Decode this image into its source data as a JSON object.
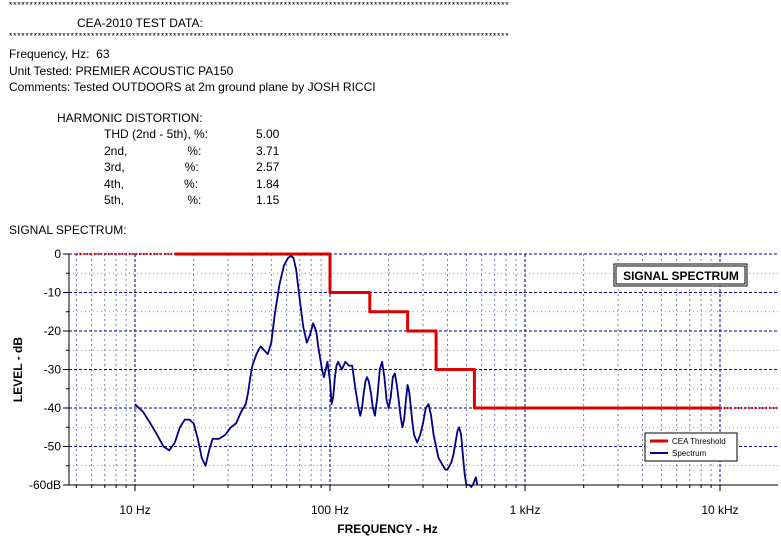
{
  "header": {
    "rule": "**************************************************************************************************************************",
    "title": "CEA-2010 TEST DATA:"
  },
  "info": {
    "frequency": "Frequency, Hz:  63",
    "unit": "Unit Tested: PREMIER ACOUSTIC PA150",
    "comments": "Comments: Tested OUTDOORS at 2m ground plane by JOSH RICCI"
  },
  "distortion": {
    "heading": "HARMONIC DISTORTION:",
    "rows": [
      {
        "label": "THD (2nd - 5th), %:",
        "value": "5.00"
      },
      {
        "label": "2nd,                  %:",
        "value": "3.71"
      },
      {
        "label": "3rd,                  %:",
        "value": "2.57"
      },
      {
        "label": "4th,                  %:",
        "value": "1.84"
      },
      {
        "label": "5th,                   %:",
        "value": "1.15"
      }
    ]
  },
  "spectrum_heading": "SIGNAL SPECTRUM:",
  "chart_data": {
    "type": "line",
    "title": "SIGNAL SPECTRUM",
    "xlabel": "FREQUENCY - Hz",
    "ylabel": "LEVEL - dB",
    "x_scale": "log",
    "xlim": [
      5,
      20000
    ],
    "ylim": [
      -60,
      0
    ],
    "grid": true,
    "legend": "bottom-right",
    "x_tick_labels": [
      {
        "value": 10,
        "label": "10  Hz"
      },
      {
        "value": 100,
        "label": "100  Hz"
      },
      {
        "value": 1000,
        "label": "1 kHz"
      },
      {
        "value": 10000,
        "label": "10 kHz"
      }
    ],
    "y_tick_labels": [
      {
        "value": 0,
        "label": "0"
      },
      {
        "value": -10,
        "label": "-10"
      },
      {
        "value": -20,
        "label": "-20"
      },
      {
        "value": -30,
        "label": "-30"
      },
      {
        "value": -40,
        "label": "-40"
      },
      {
        "value": -50,
        "label": "-50"
      },
      {
        "value": -60,
        "label": "-60dB"
      }
    ],
    "series": [
      {
        "name": "CEA Threshold",
        "color": "#dd0000",
        "dotted_segments": [
          {
            "x": [
              5,
              16
            ],
            "y": [
              0,
              0
            ]
          },
          {
            "x": [
              10000,
              20000
            ],
            "y": [
              -40,
              -40
            ]
          }
        ],
        "x": [
          16,
          100,
          100,
          160,
          160,
          250,
          250,
          350,
          350,
          550,
          550,
          10000
        ],
        "y": [
          0,
          0,
          -10,
          -10,
          -15,
          -15,
          -20,
          -20,
          -30,
          -30,
          -40,
          -40
        ]
      },
      {
        "name": "Spectrum",
        "color": "#000080",
        "x": [
          10,
          11,
          12,
          13,
          14,
          15,
          16,
          17,
          18,
          19,
          20,
          21,
          22,
          23,
          24,
          25,
          27,
          29,
          31,
          33,
          35,
          37,
          38,
          39,
          40,
          42,
          44,
          46,
          48,
          50,
          52,
          55,
          58,
          61,
          63,
          65,
          67,
          70,
          73,
          76,
          79,
          82,
          85,
          87,
          89,
          91,
          93,
          95,
          97,
          100,
          102,
          104,
          106,
          108,
          110,
          115,
          120,
          125,
          130,
          135,
          140,
          143,
          146,
          149,
          152,
          155,
          158,
          162,
          166,
          170,
          175,
          180,
          185,
          190,
          195,
          200,
          205,
          210,
          215,
          220,
          225,
          230,
          235,
          240,
          245,
          250,
          255,
          260,
          265,
          270,
          280,
          290,
          300,
          310,
          320,
          330,
          340,
          350,
          360,
          370,
          380,
          390,
          400,
          410,
          420,
          430,
          440,
          450,
          460,
          470,
          480,
          490,
          500,
          510,
          520,
          530,
          540,
          550,
          560,
          570
        ],
        "y": [
          -39,
          -41,
          -44,
          -47,
          -50,
          -51,
          -49,
          -45,
          -43,
          -43,
          -44,
          -48,
          -53,
          -55,
          -51,
          -48,
          -48,
          -47,
          -45,
          -44,
          -41,
          -39,
          -36,
          -32,
          -29,
          -26,
          -24,
          -25,
          -26,
          -23,
          -16,
          -8,
          -3,
          -1,
          -0.5,
          -1,
          -4,
          -12,
          -19,
          -23,
          -21,
          -18,
          -20,
          -24,
          -27,
          -30,
          -32,
          -30,
          -28,
          -33,
          -39,
          -37,
          -32,
          -29,
          -28,
          -30,
          -28,
          -29,
          -29,
          -35,
          -40,
          -42,
          -40,
          -36,
          -33,
          -32,
          -33,
          -36,
          -40,
          -42,
          -37,
          -30,
          -28,
          -32,
          -38,
          -40,
          -37,
          -32,
          -31,
          -34,
          -38,
          -42,
          -45,
          -43,
          -38,
          -34,
          -36,
          -40,
          -44,
          -47,
          -49,
          -47,
          -44,
          -40,
          -39,
          -42,
          -47,
          -50,
          -53,
          -54,
          -55,
          -56,
          -56,
          -55,
          -54,
          -52,
          -49,
          -46,
          -45,
          -47,
          -52,
          -57,
          -60,
          -60,
          -60,
          -61,
          -60,
          -59,
          -58,
          -60
        ]
      }
    ]
  }
}
